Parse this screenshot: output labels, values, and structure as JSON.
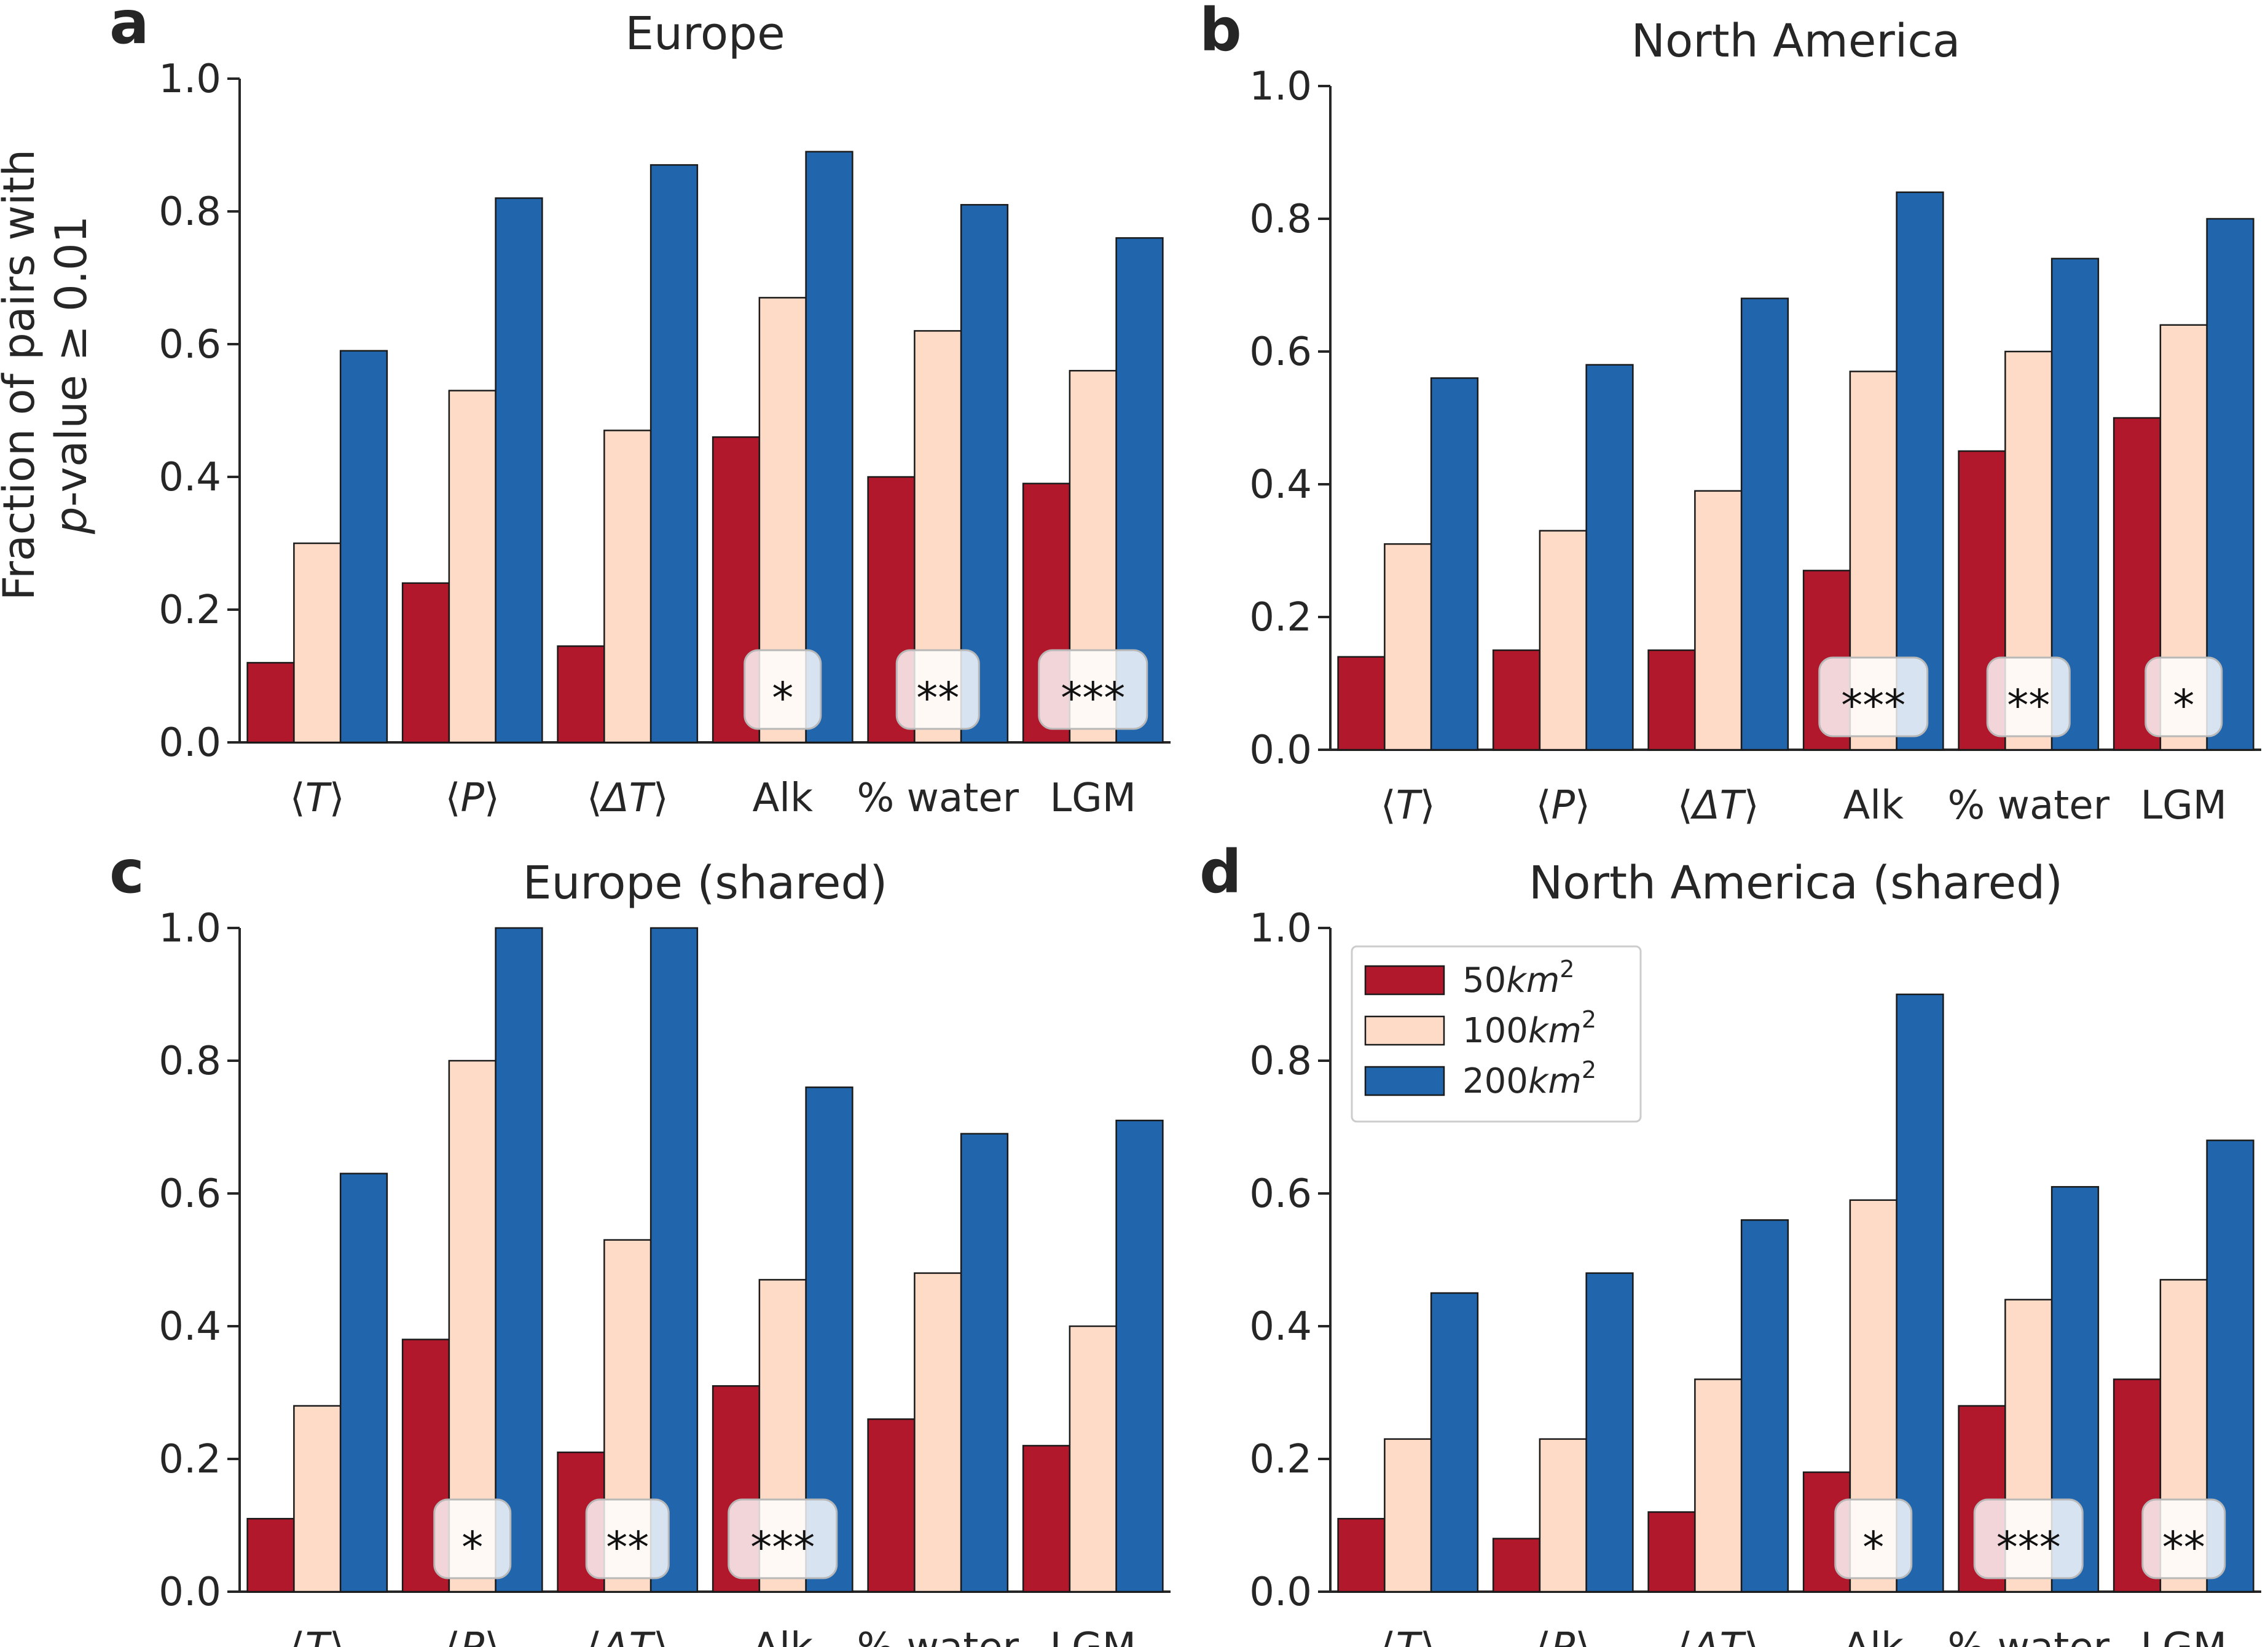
{
  "ylabel_line1": "Fraction of pairs with",
  "ylabel_line2": "p-value ≥ 0.01",
  "legend": [
    {
      "base": "50",
      "unit": "km",
      "sup": "2",
      "color": "#b2182b"
    },
    {
      "base": "100",
      "unit": "km",
      "sup": "2",
      "color": "#fddbc7"
    },
    {
      "base": "200",
      "unit": "km",
      "sup": "2",
      "color": "#2166ac"
    }
  ],
  "chart_data": [
    {
      "panel": "a",
      "type": "bar",
      "title": "Europe",
      "ylim": [
        0,
        1.0
      ],
      "yticks": [
        "0.0",
        "0.2",
        "0.4",
        "0.6",
        "0.8",
        "1.0"
      ],
      "categories": [
        {
          "open": "⟨",
          "var": "T",
          "close": "⟩"
        },
        {
          "open": "⟨",
          "var": "P",
          "close": "⟩"
        },
        {
          "open": "⟨",
          "var": "ΔT",
          "close": "⟩"
        },
        {
          "text": "Alk"
        },
        {
          "text": "% water"
        },
        {
          "text": "LGM"
        }
      ],
      "series": [
        {
          "name": "50km2",
          "values": [
            0.12,
            0.24,
            0.145,
            0.46,
            0.4,
            0.39
          ]
        },
        {
          "name": "100km2",
          "values": [
            0.3,
            0.53,
            0.47,
            0.67,
            0.62,
            0.56
          ]
        },
        {
          "name": "200km2",
          "values": [
            0.59,
            0.82,
            0.87,
            0.89,
            0.81,
            0.76
          ]
        }
      ],
      "significance": [
        "",
        "",
        "",
        "*",
        "**",
        "***"
      ]
    },
    {
      "panel": "b",
      "type": "bar",
      "title": "North America",
      "ylim": [
        0,
        1.0
      ],
      "yticks": [
        "0.0",
        "0.2",
        "0.4",
        "0.6",
        "0.8",
        "1.0"
      ],
      "categories": [
        {
          "open": "⟨",
          "var": "T",
          "close": "⟩"
        },
        {
          "open": "⟨",
          "var": "P",
          "close": "⟩"
        },
        {
          "open": "⟨",
          "var": "ΔT",
          "close": "⟩"
        },
        {
          "text": "Alk"
        },
        {
          "text": "% water"
        },
        {
          "text": "LGM"
        }
      ],
      "series": [
        {
          "name": "50km2",
          "values": [
            0.14,
            0.15,
            0.15,
            0.27,
            0.45,
            0.5
          ]
        },
        {
          "name": "100km2",
          "values": [
            0.31,
            0.33,
            0.39,
            0.57,
            0.6,
            0.64
          ]
        },
        {
          "name": "200km2",
          "values": [
            0.56,
            0.58,
            0.68,
            0.84,
            0.74,
            0.8
          ]
        }
      ],
      "significance": [
        "",
        "",
        "",
        "***",
        "**",
        "*"
      ]
    },
    {
      "panel": "c",
      "type": "bar",
      "title": "Europe (shared)",
      "ylim": [
        0,
        1.0
      ],
      "yticks": [
        "0.0",
        "0.2",
        "0.4",
        "0.6",
        "0.8",
        "1.0"
      ],
      "categories": [
        {
          "open": "⟨",
          "var": "T",
          "close": "⟩"
        },
        {
          "open": "⟨",
          "var": "P",
          "close": "⟩"
        },
        {
          "open": "⟨",
          "var": "ΔT",
          "close": "⟩"
        },
        {
          "text": "Alk"
        },
        {
          "text": "% water"
        },
        {
          "text": "LGM"
        }
      ],
      "series": [
        {
          "name": "50km2",
          "values": [
            0.11,
            0.38,
            0.21,
            0.31,
            0.26,
            0.22
          ]
        },
        {
          "name": "100km2",
          "values": [
            0.28,
            0.8,
            0.53,
            0.47,
            0.48,
            0.4
          ]
        },
        {
          "name": "200km2",
          "values": [
            0.63,
            1.0,
            1.0,
            0.76,
            0.69,
            0.71
          ]
        }
      ],
      "significance": [
        "",
        "*",
        "**",
        "***",
        "",
        ""
      ]
    },
    {
      "panel": "d",
      "type": "bar",
      "title": "North America (shared)",
      "ylim": [
        0,
        1.0
      ],
      "yticks": [
        "0.0",
        "0.2",
        "0.4",
        "0.6",
        "0.8",
        "1.0"
      ],
      "legend_position": "upper-left",
      "categories": [
        {
          "open": "⟨",
          "var": "T",
          "close": "⟩"
        },
        {
          "open": "⟨",
          "var": "P",
          "close": "⟩"
        },
        {
          "open": "⟨",
          "var": "ΔT",
          "close": "⟩"
        },
        {
          "text": "Alk"
        },
        {
          "text": "% water"
        },
        {
          "text": "LGM"
        }
      ],
      "series": [
        {
          "name": "50km2",
          "values": [
            0.11,
            0.08,
            0.12,
            0.18,
            0.28,
            0.32
          ]
        },
        {
          "name": "100km2",
          "values": [
            0.23,
            0.23,
            0.32,
            0.59,
            0.44,
            0.47
          ]
        },
        {
          "name": "200km2",
          "values": [
            0.45,
            0.48,
            0.56,
            0.9,
            0.61,
            0.68
          ]
        }
      ],
      "significance": [
        "",
        "",
        "",
        "*",
        "***",
        "**"
      ]
    }
  ]
}
